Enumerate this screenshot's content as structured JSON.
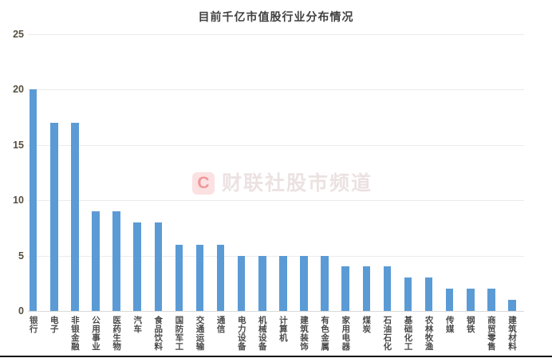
{
  "title": "目前千亿市值股行业分布情况",
  "watermark": {
    "logo_letter": "C",
    "text": "财联社股市频道"
  },
  "colors": {
    "bar": "#5b9bd5",
    "grid": "#ebebeb",
    "axis_line": "#d9d9d9",
    "title_text": "#404040",
    "y_tick_text": "#56503e",
    "x_tick_text": "#4a4a4a",
    "watermark_box": "#fbe1e1",
    "watermark_letter": "#f0989a",
    "watermark_text": "#ece2e2",
    "bottom_border": "#111111"
  },
  "chart_data": {
    "type": "bar",
    "title": "目前千亿市值股行业分布情况",
    "categories": [
      "银行",
      "电子",
      "非银金融",
      "公用事业",
      "医药生物",
      "汽车",
      "食品饮料",
      "国防军工",
      "交通运输",
      "通信",
      "电力设备",
      "机械设备",
      "计算机",
      "建筑装饰",
      "有色金属",
      "家用电器",
      "煤炭",
      "石油石化",
      "基础化工",
      "农林牧渔",
      "传媒",
      "钢铁",
      "商贸零售",
      "建筑材料"
    ],
    "values": [
      20,
      17,
      17,
      9,
      9,
      8,
      8,
      6,
      6,
      6,
      5,
      5,
      5,
      5,
      5,
      4,
      4,
      4,
      3,
      3,
      2,
      2,
      2,
      1
    ],
    "xlabel": "",
    "ylabel": "",
    "ylim": [
      0,
      25
    ],
    "yticks": [
      0,
      5,
      10,
      15,
      20,
      25
    ],
    "grid": true,
    "legend": false
  }
}
